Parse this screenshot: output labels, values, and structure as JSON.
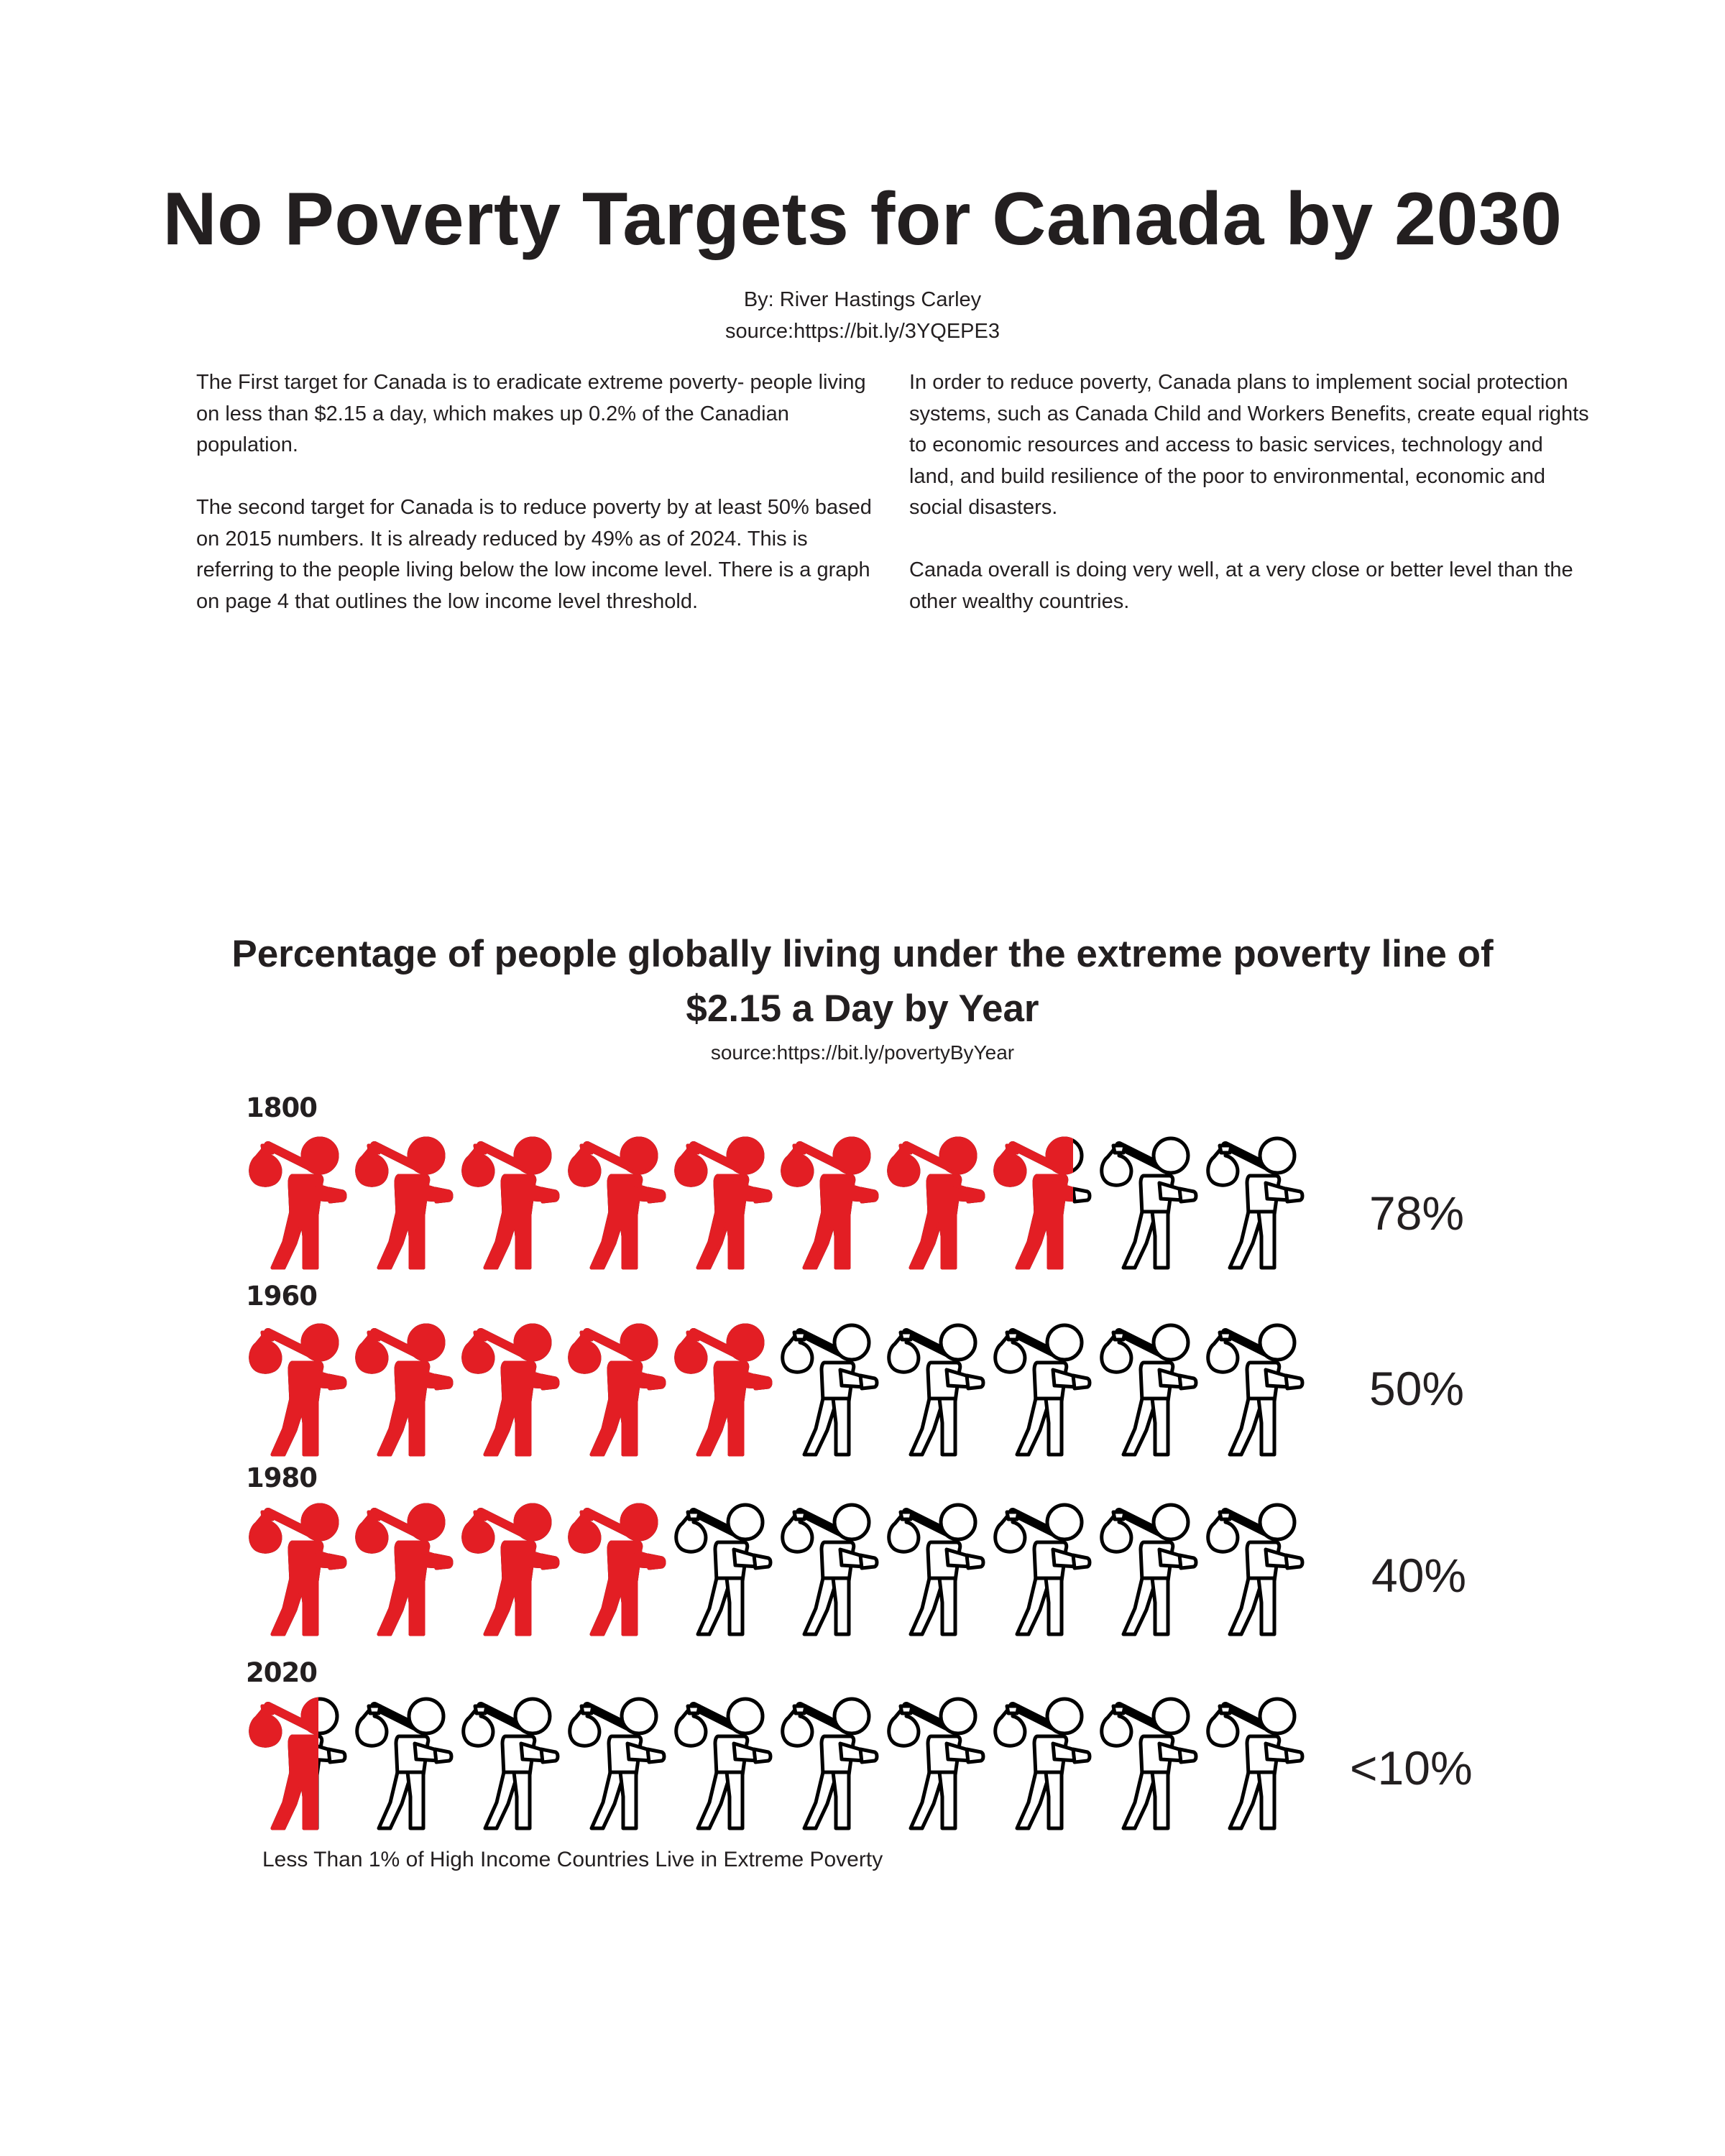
{
  "document": {
    "title": "No Poverty Targets for Canada by 2030",
    "byline": "By: River Hastings Carley",
    "source": "source:https://bit.ly/3YQEPE3"
  },
  "body": {
    "left": [
      "The First target for Canada is to eradicate extreme poverty- people living on less than $2.15 a day, which makes up 0.2% of the Canadian population.",
      "The second target for Canada is to reduce poverty by at least 50% based on 2015 numbers. It is already reduced by 49% as of 2024. This is referring to the people living below the low income level. There is a graph on page 4 that outlines the low income level threshold."
    ],
    "right": [
      "In order to reduce poverty, Canada plans to implement social protection systems, such as Canada Child and Workers Benefits, create equal rights to economic resources and access to basic services, technology and land, and build resilience of the poor to environmental, economic and social disasters.",
      "Canada overall is doing very well, at a very close or better level than the other wealthy countries."
    ]
  },
  "chart": {
    "title_line1": "Percentage of people globally living under the extreme poverty line of",
    "title_line2": "$2.15 a Day by Year",
    "source": "source:https://bit.ly/povertyByYear",
    "note": "Less Than 1% of High Income Countries Live in Extreme Poverty",
    "colors": {
      "filled": "#e31e24",
      "empty": "#ffffff",
      "outline": "#000000"
    },
    "icon": "person-carrying-bundle-icon"
  },
  "chart_data": {
    "type": "pictograph",
    "icons_per_row": 10,
    "rows": [
      {
        "year": "1800",
        "label": "78%",
        "value": 78,
        "filled_icons": 7.8
      },
      {
        "year": "1960",
        "label": "50%",
        "value": 50,
        "filled_icons": 5
      },
      {
        "year": "1980",
        "label": "40%",
        "value": 40,
        "filled_icons": 4
      },
      {
        "year": "2020",
        "label": "<10%",
        "value": 10,
        "filled_icons": 0.7
      }
    ]
  }
}
